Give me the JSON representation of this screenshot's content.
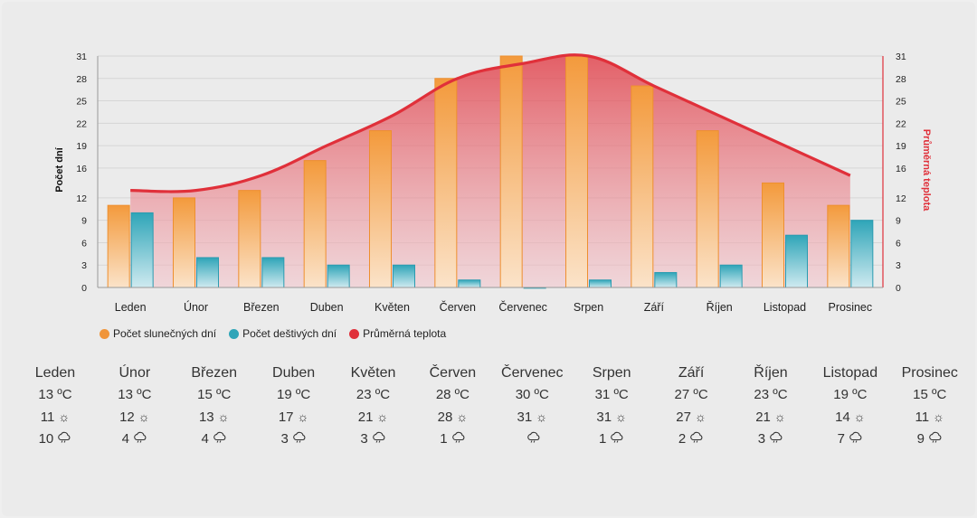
{
  "chart_data": {
    "type": "bar",
    "categories": [
      "Leden",
      "Únor",
      "Březen",
      "Duben",
      "Květen",
      "Červen",
      "Červenec",
      "Srpen",
      "Září",
      "Říjen",
      "Listopad",
      "Prosinec"
    ],
    "series": [
      {
        "name": "Počet slunečných dní",
        "type": "bar",
        "axis": "left",
        "color": "#f0953a",
        "values": [
          11,
          12,
          13,
          17,
          21,
          28,
          31,
          31,
          27,
          21,
          14,
          11
        ]
      },
      {
        "name": "Počet deštivých dní",
        "type": "bar",
        "axis": "left",
        "color": "#2fa5b8",
        "values": [
          10,
          4,
          4,
          3,
          3,
          1,
          0,
          1,
          2,
          3,
          7,
          9
        ]
      },
      {
        "name": "Průměrná teplota",
        "type": "area",
        "axis": "right",
        "color": "#e0303a",
        "values": [
          13,
          13,
          15,
          19,
          23,
          28,
          30,
          31,
          27,
          23,
          19,
          15
        ]
      }
    ],
    "ylabel": "Počet dní",
    "y2label": "Průměrná teplota",
    "yticks": [
      0,
      3,
      6,
      9,
      12,
      16,
      19,
      22,
      25,
      28,
      31
    ],
    "ylim": [
      0,
      31
    ],
    "y2lim": [
      0,
      31
    ],
    "grid": true,
    "legend_position": "bottom-left"
  },
  "legend": [
    {
      "label": "Počet slunečných dní",
      "color": "#f0953a"
    },
    {
      "label": "Počet deštivých dní",
      "color": "#2fa5b8"
    },
    {
      "label": "Průměrná teplota",
      "color": "#e0303a"
    }
  ],
  "table": [
    {
      "month": "Leden",
      "temp": "13 ºC",
      "sun": "11",
      "rain": "10"
    },
    {
      "month": "Únor",
      "temp": "13 ºC",
      "sun": "12",
      "rain": "4"
    },
    {
      "month": "Březen",
      "temp": "15 ºC",
      "sun": "13",
      "rain": "4"
    },
    {
      "month": "Duben",
      "temp": "19 ºC",
      "sun": "17",
      "rain": "3"
    },
    {
      "month": "Květen",
      "temp": "23 ºC",
      "sun": "21",
      "rain": "3"
    },
    {
      "month": "Červen",
      "temp": "28 ºC",
      "sun": "28",
      "rain": "1"
    },
    {
      "month": "Červenec",
      "temp": "30 ºC",
      "sun": "31",
      "rain": ""
    },
    {
      "month": "Srpen",
      "temp": "31 ºC",
      "sun": "31",
      "rain": "1"
    },
    {
      "month": "Září",
      "temp": "27 ºC",
      "sun": "27",
      "rain": "2"
    },
    {
      "month": "Říjen",
      "temp": "23 ºC",
      "sun": "21",
      "rain": "3"
    },
    {
      "month": "Listopad",
      "temp": "19 ºC",
      "sun": "14",
      "rain": "7"
    },
    {
      "month": "Prosinec",
      "temp": "15 ºC",
      "sun": "11",
      "rain": "9"
    }
  ],
  "icons": {
    "sun": "sun-icon",
    "rain": "rain-cloud-icon"
  }
}
